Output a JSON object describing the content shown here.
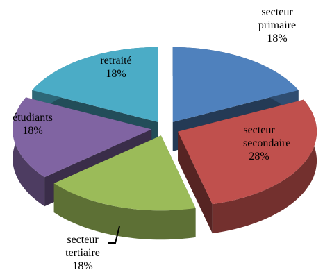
{
  "chart_data": {
    "type": "pie3d",
    "categories": [
      "secteur primaire",
      "secteur secondaire",
      "secteur tertiaire",
      "étudiants",
      "retraité"
    ],
    "values": [
      18,
      28,
      18,
      18,
      18
    ],
    "value_labels": [
      "18%",
      "28%",
      "18%",
      "18%",
      "18%"
    ],
    "colors": [
      "#4f81bd",
      "#c0504d",
      "#9bbb59",
      "#8064a2",
      "#4bacc6"
    ]
  }
}
